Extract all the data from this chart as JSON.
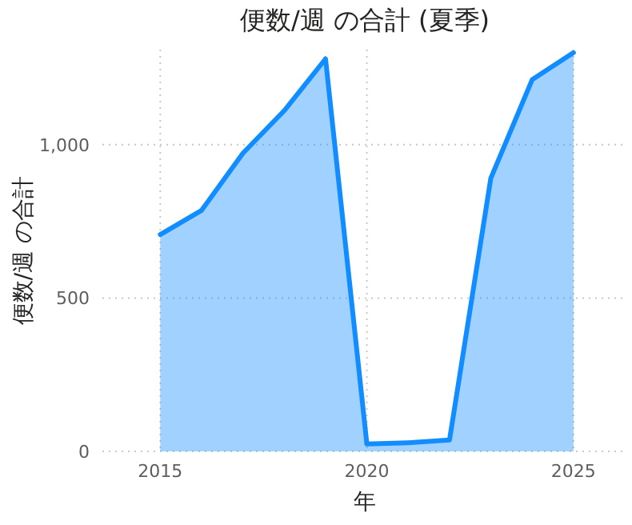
{
  "chart_data": {
    "type": "area",
    "title": "便数/週 の合計 (夏季)",
    "xlabel": "年",
    "ylabel": "便数/週 の合計",
    "x": [
      2015,
      2016,
      2017,
      2018,
      2019,
      2020,
      2021,
      2022,
      2023,
      2024,
      2025
    ],
    "series": [
      {
        "color": "#118dff",
        "values": [
          707,
          786,
          972,
          1111,
          1280,
          24,
          28,
          37,
          891,
          1212,
          1300
        ]
      }
    ],
    "xlim": [
      2013.6,
      2026.3
    ],
    "xticks": [
      2015,
      2020,
      2025
    ],
    "ylim": [
      0,
      1310
    ],
    "yticks": [
      0,
      500,
      {
        "value": 1000,
        "label": "1,000"
      }
    ],
    "grid": true
  }
}
